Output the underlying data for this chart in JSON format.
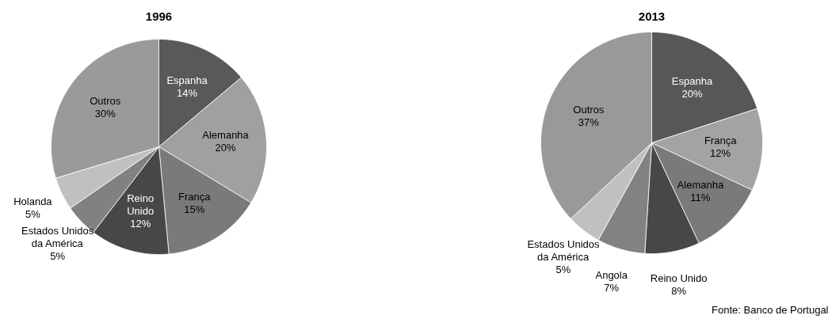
{
  "chart_data": [
    {
      "type": "pie",
      "title": "1996",
      "categories": [
        "Espanha",
        "Alemanha",
        "França",
        "Reino Unido",
        "Estados Unidos da América",
        "Holanda",
        "Outros"
      ],
      "values": [
        14,
        20,
        15,
        12,
        5,
        5,
        30
      ],
      "value_labels": [
        "14%",
        "20%",
        "15%",
        "12%",
        "5%",
        "5%",
        "30%"
      ],
      "colors": [
        "#595959",
        "#a0a0a0",
        "#7a7a7a",
        "#474747",
        "#818181",
        "#c0c0c0",
        "#9a9a9a"
      ],
      "legend": false
    },
    {
      "type": "pie",
      "title": "2013",
      "categories": [
        "Espanha",
        "França",
        "Alemanha",
        "Reino Unido",
        "Angola",
        "Estados Unidos da América",
        "Outros"
      ],
      "values": [
        20,
        12,
        11,
        8,
        7,
        5,
        37
      ],
      "value_labels": [
        "20%",
        "12%",
        "11%",
        "8%",
        "7%",
        "5%",
        "37%"
      ],
      "colors": [
        "#575757",
        "#a3a3a3",
        "#7a7a7a",
        "#474747",
        "#828282",
        "#c0c0c0",
        "#999999"
      ],
      "legend": false,
      "annotations": [
        "Fonte: Banco de Portugal"
      ]
    }
  ]
}
